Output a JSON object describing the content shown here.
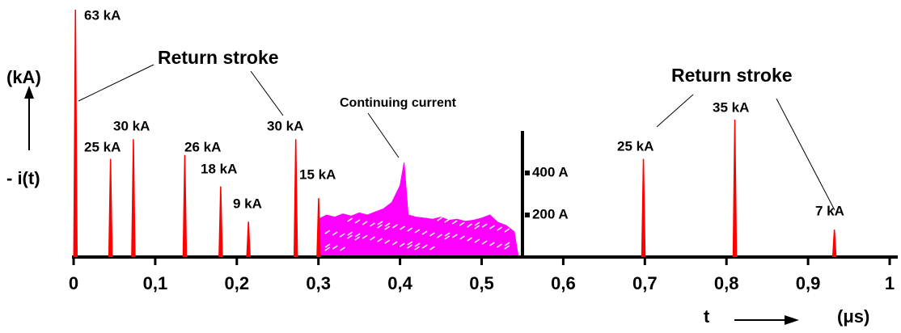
{
  "chart_data": {
    "type": "line",
    "x_label": "t",
    "x_unit": "(μs)",
    "y_label": "- i(t)",
    "y_unit": "(kA)",
    "xlim": [
      0,
      1
    ],
    "xticks": [
      0,
      {
        "value": 0.1,
        "label": "0,1"
      },
      {
        "value": 0.2,
        "label": "0,2"
      },
      {
        "value": 0.3,
        "label": "0,3"
      },
      {
        "value": 0.4,
        "label": "0,4"
      },
      {
        "value": 0.5,
        "label": "0,5"
      },
      {
        "value": 0.6,
        "label": "0,6"
      },
      {
        "value": 0.7,
        "label": "0,7"
      },
      {
        "value": 0.8,
        "label": "0,8"
      },
      {
        "value": 0.9,
        "label": "0,9"
      },
      1
    ],
    "y2lim": [
      0,
      600
    ],
    "y2ticks": [
      {
        "value": 200,
        "label": "200 A"
      },
      {
        "value": 400,
        "label": "400 A"
      }
    ],
    "annotations": [
      "Return stroke",
      "Return stroke",
      "Continuing current"
    ],
    "series": [
      {
        "type": "spike",
        "color": "#ff0000",
        "x": [
          0.002,
          0.045,
          0.073,
          0.136,
          0.18,
          0.214,
          0.272,
          0.3,
          0.698,
          0.81,
          0.932
        ],
        "values": [
          63,
          25,
          30,
          26,
          18,
          9,
          30,
          15,
          25,
          35,
          7
        ],
        "value_labels": [
          "63 kA",
          "25 kA",
          "30 kA",
          "26 kA",
          "18 kA",
          "9 kA",
          "30 kA",
          "15 kA",
          "25 kA",
          "35 kA",
          "7 kA"
        ]
      },
      {
        "type": "area",
        "color": "#ff00ff",
        "axis": "y2",
        "x": [
          0.3,
          0.31,
          0.32,
          0.33,
          0.34,
          0.35,
          0.36,
          0.37,
          0.38,
          0.39,
          0.4,
          0.405,
          0.41,
          0.42,
          0.43,
          0.44,
          0.45,
          0.46,
          0.47,
          0.48,
          0.49,
          0.5,
          0.51,
          0.52,
          0.53,
          0.54,
          0.545
        ],
        "values": [
          180,
          200,
          190,
          205,
          195,
          210,
          200,
          215,
          230,
          260,
          340,
          450,
          200,
          190,
          185,
          180,
          190,
          175,
          180,
          170,
          175,
          185,
          200,
          165,
          150,
          120,
          0
        ]
      }
    ]
  }
}
